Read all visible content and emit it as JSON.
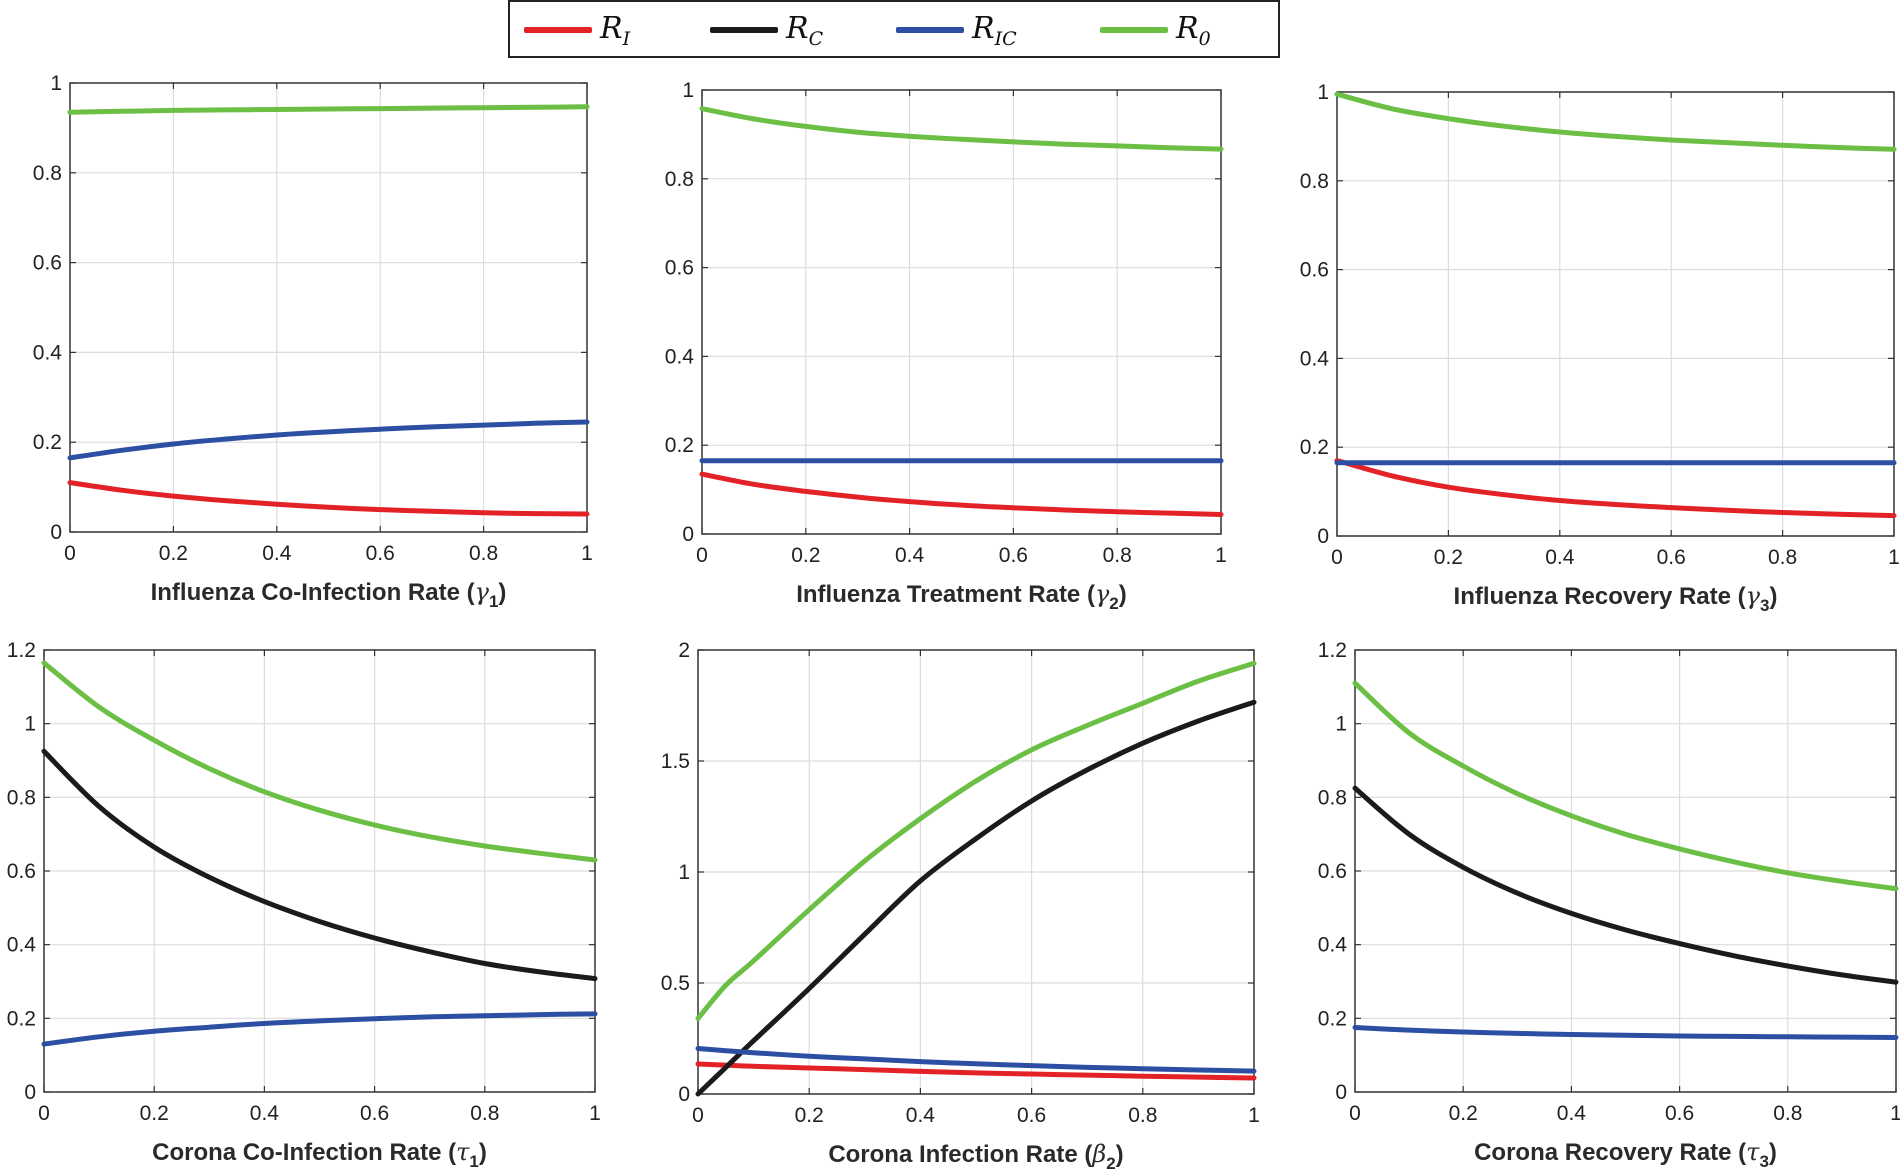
{
  "legend": [
    {
      "key": "RI",
      "symbol": "R",
      "sub": "I",
      "color": "#e32227"
    },
    {
      "key": "RC",
      "symbol": "R",
      "sub": "C",
      "color": "#1b1b1b"
    },
    {
      "key": "RIC",
      "symbol": "R",
      "sub": "IC",
      "color": "#2c4fa3"
    },
    {
      "key": "R0",
      "symbol": "R",
      "sub": "0",
      "color": "#6cbf45"
    }
  ],
  "chart_data": [
    {
      "type": "line",
      "xlabel": "Influenza Co-Infection Rate (",
      "xsym": "γ",
      "xsub": "1",
      "xlabel_end": ")",
      "xlim": [
        0,
        1
      ],
      "ylim": [
        0,
        1
      ],
      "xticks": [
        "0",
        "0.2",
        "0.4",
        "0.6",
        "0.8",
        "1"
      ],
      "yticks": [
        "0",
        "0.2",
        "0.4",
        "0.6",
        "0.8",
        "1"
      ],
      "x": [
        0,
        0.1,
        0.2,
        0.3,
        0.4,
        0.5,
        0.6,
        0.7,
        0.8,
        0.9,
        1
      ],
      "series": [
        {
          "name": "RI",
          "values": [
            0.11,
            0.093,
            0.08,
            0.07,
            0.062,
            0.055,
            0.05,
            0.046,
            0.043,
            0.041,
            0.04
          ]
        },
        {
          "name": "RIC",
          "values": [
            0.165,
            0.182,
            0.196,
            0.207,
            0.216,
            0.223,
            0.229,
            0.234,
            0.238,
            0.242,
            0.245
          ]
        },
        {
          "name": "R0",
          "values": [
            0.935,
            0.937,
            0.939,
            0.94,
            0.941,
            0.942,
            0.943,
            0.944,
            0.945,
            0.946,
            0.947
          ]
        }
      ]
    },
    {
      "type": "line",
      "xlabel": "Influenza Treatment Rate (",
      "xsym": "γ",
      "xsub": "2",
      "xlabel_end": ")",
      "xlim": [
        0,
        1
      ],
      "ylim": [
        0,
        1
      ],
      "xticks": [
        "0",
        "0.2",
        "0.4",
        "0.6",
        "0.8",
        "1"
      ],
      "yticks": [
        "0",
        "0.2",
        "0.4",
        "0.6",
        "0.8",
        "1"
      ],
      "x": [
        0,
        0.1,
        0.2,
        0.3,
        0.4,
        0.5,
        0.6,
        0.7,
        0.8,
        0.9,
        1
      ],
      "series": [
        {
          "name": "RI",
          "values": [
            0.135,
            0.112,
            0.096,
            0.083,
            0.073,
            0.065,
            0.059,
            0.054,
            0.05,
            0.047,
            0.044
          ]
        },
        {
          "name": "RIC",
          "values": [
            0.165,
            0.165,
            0.165,
            0.165,
            0.165,
            0.165,
            0.165,
            0.165,
            0.165,
            0.165,
            0.165
          ]
        },
        {
          "name": "R0",
          "values": [
            0.958,
            0.935,
            0.918,
            0.905,
            0.896,
            0.889,
            0.883,
            0.878,
            0.874,
            0.87,
            0.867
          ]
        }
      ]
    },
    {
      "type": "line",
      "xlabel": "Influenza Recovery Rate (",
      "xsym": "γ",
      "xsub": "3",
      "xlabel_end": ")",
      "xlim": [
        0,
        1
      ],
      "ylim": [
        0,
        1
      ],
      "xticks": [
        "0",
        "0.2",
        "0.4",
        "0.6",
        "0.8",
        "1"
      ],
      "yticks": [
        "0",
        "0.2",
        "0.4",
        "0.6",
        "0.8",
        "1"
      ],
      "x": [
        0,
        0.1,
        0.2,
        0.3,
        0.4,
        0.5,
        0.6,
        0.7,
        0.8,
        0.9,
        1
      ],
      "series": [
        {
          "name": "RI",
          "values": [
            0.17,
            0.135,
            0.11,
            0.093,
            0.08,
            0.071,
            0.064,
            0.058,
            0.053,
            0.049,
            0.046
          ]
        },
        {
          "name": "RIC",
          "values": [
            0.165,
            0.165,
            0.165,
            0.165,
            0.165,
            0.165,
            0.165,
            0.165,
            0.165,
            0.165,
            0.165
          ]
        },
        {
          "name": "R0",
          "values": [
            0.995,
            0.962,
            0.94,
            0.923,
            0.91,
            0.9,
            0.892,
            0.886,
            0.88,
            0.875,
            0.871
          ]
        }
      ]
    },
    {
      "type": "line",
      "xlabel": "Corona Co-Infection Rate (",
      "xsym": "τ",
      "xsub": "1",
      "xlabel_end": ")",
      "xlim": [
        0,
        1
      ],
      "ylim": [
        0,
        1.2
      ],
      "xticks": [
        "0",
        "0.2",
        "0.4",
        "0.6",
        "0.8",
        "1"
      ],
      "yticks": [
        "0",
        "0.2",
        "0.4",
        "0.6",
        "0.8",
        "1",
        "1.2"
      ],
      "x": [
        0,
        0.1,
        0.2,
        0.3,
        0.4,
        0.5,
        0.6,
        0.7,
        0.8,
        0.9,
        1
      ],
      "series": [
        {
          "name": "RC",
          "values": [
            0.925,
            0.775,
            0.665,
            0.583,
            0.517,
            0.463,
            0.418,
            0.381,
            0.349,
            0.326,
            0.308
          ]
        },
        {
          "name": "RIC",
          "values": [
            0.13,
            0.15,
            0.165,
            0.176,
            0.186,
            0.193,
            0.199,
            0.204,
            0.207,
            0.21,
            0.212
          ]
        },
        {
          "name": "R0",
          "values": [
            1.165,
            1.045,
            0.955,
            0.878,
            0.815,
            0.765,
            0.725,
            0.693,
            0.668,
            0.648,
            0.63
          ]
        }
      ]
    },
    {
      "type": "line",
      "xlabel": "Corona Infection Rate (",
      "xsym": "β",
      "xsub": "2",
      "xlabel_end": ")",
      "xlim": [
        0,
        1
      ],
      "ylim": [
        0,
        2
      ],
      "xticks": [
        "0",
        "0.2",
        "0.4",
        "0.6",
        "0.8",
        "1"
      ],
      "yticks": [
        "0",
        "0.5",
        "1",
        "1.5",
        "2"
      ],
      "x": [
        0,
        0.05,
        0.1,
        0.2,
        0.3,
        0.4,
        0.5,
        0.6,
        0.7,
        0.8,
        0.9,
        1
      ],
      "series": [
        {
          "name": "RI",
          "values": [
            0.135,
            0.13,
            0.125,
            0.117,
            0.11,
            0.102,
            0.095,
            0.09,
            0.085,
            0.08,
            0.076,
            0.072
          ]
        },
        {
          "name": "RC",
          "values": [
            0.0,
            0.12,
            0.24,
            0.475,
            0.72,
            0.96,
            1.15,
            1.32,
            1.46,
            1.58,
            1.68,
            1.765
          ]
        },
        {
          "name": "RIC",
          "values": [
            0.205,
            0.195,
            0.186,
            0.17,
            0.158,
            0.146,
            0.136,
            0.128,
            0.12,
            0.114,
            0.108,
            0.103
          ]
        },
        {
          "name": "R0",
          "values": [
            0.34,
            0.49,
            0.6,
            0.83,
            1.05,
            1.24,
            1.41,
            1.55,
            1.66,
            1.76,
            1.86,
            1.94
          ]
        }
      ]
    },
    {
      "type": "line",
      "xlabel": "Corona Recovery Rate (",
      "xsym": "τ",
      "xsub": "3",
      "xlabel_end": ")",
      "xlim": [
        0,
        1
      ],
      "ylim": [
        0,
        1.2
      ],
      "xticks": [
        "0",
        "0.2",
        "0.4",
        "0.6",
        "0.8",
        "1"
      ],
      "yticks": [
        "0",
        "0.2",
        "0.4",
        "0.6",
        "0.8",
        "1",
        "1.2"
      ],
      "x": [
        0,
        0.1,
        0.2,
        0.3,
        0.4,
        0.5,
        0.6,
        0.7,
        0.8,
        0.9,
        1
      ],
      "series": [
        {
          "name": "RC",
          "values": [
            0.825,
            0.7,
            0.61,
            0.54,
            0.485,
            0.44,
            0.403,
            0.37,
            0.342,
            0.318,
            0.298
          ]
        },
        {
          "name": "RIC",
          "values": [
            0.175,
            0.168,
            0.163,
            0.159,
            0.156,
            0.154,
            0.152,
            0.151,
            0.15,
            0.149,
            0.148
          ]
        },
        {
          "name": "R0",
          "values": [
            1.11,
            0.975,
            0.885,
            0.81,
            0.75,
            0.7,
            0.66,
            0.625,
            0.595,
            0.572,
            0.552
          ]
        }
      ]
    }
  ]
}
